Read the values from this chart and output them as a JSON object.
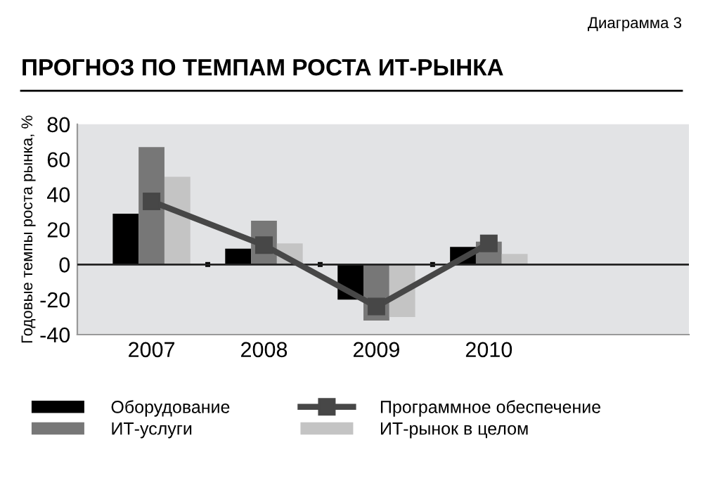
{
  "chart_data": {
    "type": "bar",
    "title": "ПРОГНОЗ ПО ТЕМПАМ РОСТА ИТ-РЫНКА",
    "annotations": [
      "Диаграмма 3"
    ],
    "ylabel": "Годовые темпы роста рынка, %",
    "categories": [
      "2007",
      "2008",
      "2009",
      "2010"
    ],
    "series": [
      {
        "name": "Оборудование",
        "color": "#000000",
        "values": [
          29,
          9,
          -20,
          10
        ]
      },
      {
        "name": "ИТ-услуги",
        "color": "#777777",
        "values": [
          67,
          25,
          -32,
          13
        ]
      },
      {
        "name": "Программное обеспечение",
        "type": "line",
        "color": "#474747",
        "values": [
          36,
          11,
          -24,
          12
        ]
      },
      {
        "name": "ИТ-рынок в целом",
        "color": "#c4c4c4",
        "values": [
          50,
          12,
          -30,
          6
        ]
      }
    ],
    "ylim": [
      -40,
      80
    ],
    "yticks": [
      -40,
      -20,
      0,
      20,
      40,
      60,
      80
    ],
    "ref_lines": [
      {
        "axis": "y",
        "value": 0,
        "color": "#222222"
      }
    ],
    "marker": "square",
    "line_style": "solid",
    "grid": false,
    "legend": "bottom"
  }
}
